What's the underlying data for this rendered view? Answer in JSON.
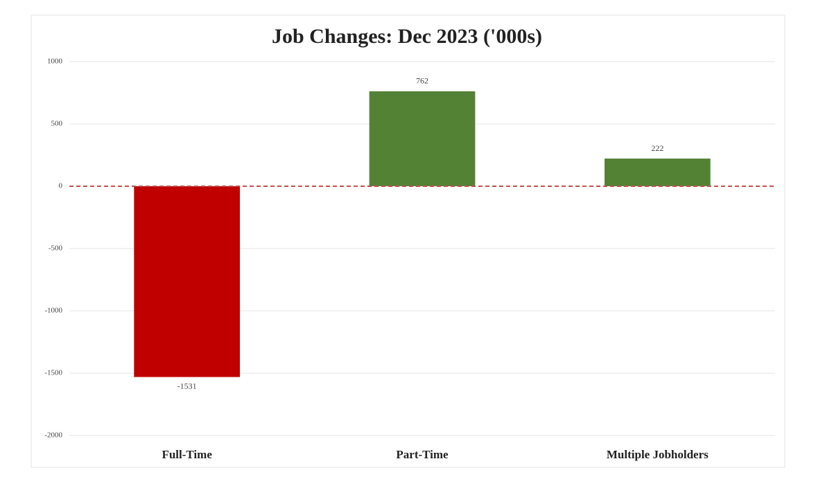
{
  "chart_data": {
    "type": "bar",
    "title": "Job Changes: Dec 2023 ('000s)",
    "categories": [
      "Full-Time",
      "Part-Time",
      "Multiple Jobholders"
    ],
    "values": [
      -1531,
      762,
      222
    ],
    "colors": [
      "#c00000",
      "#548235",
      "#548235"
    ],
    "ylim": [
      -2000,
      1000
    ],
    "yticks": [
      1000,
      500,
      0,
      -500,
      -1000,
      -1500,
      -2000
    ],
    "grid": true,
    "zero_line_color": "#c0504d"
  }
}
